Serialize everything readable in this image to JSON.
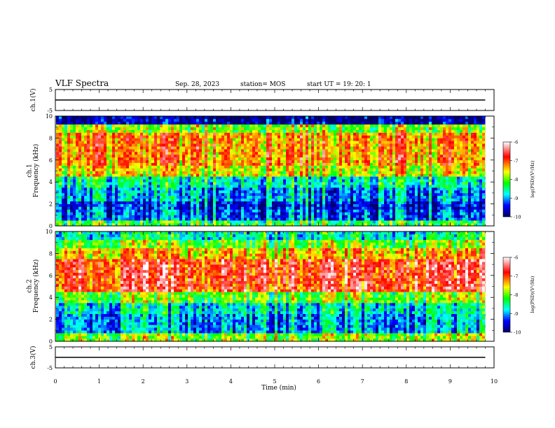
{
  "header": {
    "title": "VLF Spectra",
    "date": "Sep. 28, 2023",
    "station": "station= MOS",
    "start": "start  UT =   19: 20: 1"
  },
  "colorbar": {
    "label": "log(PSD)(V²/Hz)",
    "ticks": [
      "-6",
      "-7",
      "-8",
      "-9",
      "-10"
    ],
    "colors": [
      "#ffffff",
      "#ff0000",
      "#ffff00",
      "#00ff00",
      "#00ffff",
      "#0000ff",
      "#000066"
    ]
  },
  "chart_data": [
    {
      "type": "line",
      "panel": "ch.1(V)",
      "ylabel": "ch.1(V)",
      "ylim": [
        -5,
        5
      ],
      "y_ticks": [
        "5",
        "-5"
      ],
      "x": [
        0,
        9.8
      ],
      "y": [
        0,
        0
      ]
    },
    {
      "type": "heatmap",
      "panel": "ch.1 spectrogram",
      "ylabel": "ch.1\nFrequency (kHz)",
      "ylim": [
        0,
        10
      ],
      "y_ticks": [
        "0",
        "2",
        "4",
        "6",
        "8",
        "10"
      ],
      "xlim": [
        0,
        10
      ],
      "data_x_end": 9.8,
      "value_range": [
        -10,
        -6
      ],
      "bands": [
        {
          "f0": 0,
          "f1": 0.6,
          "level": -8.2
        },
        {
          "f0": 0.6,
          "f1": 1.5,
          "level": -9.2
        },
        {
          "f0": 1.5,
          "f1": 2.2,
          "level": -9.4
        },
        {
          "f0": 2.2,
          "f1": 3.5,
          "level": -9.0
        },
        {
          "f0": 3.5,
          "f1": 4.5,
          "level": -8.6
        },
        {
          "f0": 4.5,
          "f1": 5.5,
          "level": -7.6
        },
        {
          "f0": 5.5,
          "f1": 8.6,
          "level": -7.2
        },
        {
          "f0": 8.6,
          "f1": 9.2,
          "level": -7.9
        },
        {
          "f0": 9.2,
          "f1": 10,
          "level": -9.8
        }
      ]
    },
    {
      "type": "heatmap",
      "panel": "ch.2 spectrogram",
      "ylabel": "ch.2\nFrequency (kHz)",
      "ylim": [
        0,
        10
      ],
      "y_ticks": [
        "0",
        "2",
        "4",
        "6",
        "8",
        "10"
      ],
      "xlim": [
        0,
        10
      ],
      "data_x_end": 9.8,
      "value_range": [
        -10,
        -6
      ],
      "bands": [
        {
          "f0": 0,
          "f1": 0.8,
          "level": -7.9
        },
        {
          "f0": 0.8,
          "f1": 2.5,
          "level": -9.0
        },
        {
          "f0": 2.5,
          "f1": 3.5,
          "level": -8.7
        },
        {
          "f0": 3.5,
          "f1": 4.5,
          "level": -8.0
        },
        {
          "f0": 4.5,
          "f1": 7.5,
          "level": -6.8
        },
        {
          "f0": 7.5,
          "f1": 8.5,
          "level": -7.4
        },
        {
          "f0": 8.5,
          "f1": 9.3,
          "level": -8.0
        },
        {
          "f0": 9.3,
          "f1": 10,
          "level": -8.6
        }
      ]
    },
    {
      "type": "line",
      "panel": "ch.3(V)",
      "ylabel": "ch.3(V)",
      "ylim": [
        -5,
        5
      ],
      "y_ticks": [
        "5",
        "-5"
      ],
      "x": [
        0,
        9.8
      ],
      "y": [
        0,
        0
      ]
    }
  ],
  "xaxis": {
    "label": "Time (min)",
    "ticks": [
      "0",
      "1",
      "2",
      "3",
      "4",
      "5",
      "6",
      "7",
      "8",
      "9",
      "10"
    ]
  }
}
